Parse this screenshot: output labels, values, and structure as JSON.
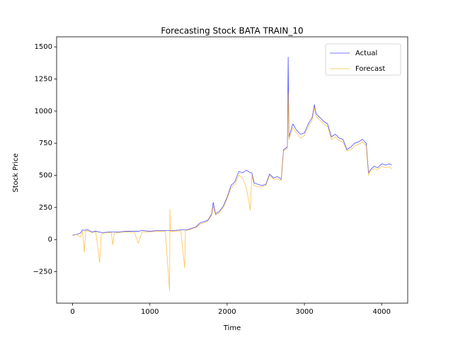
{
  "chart_data": {
    "type": "line",
    "title": "Forecasting Stock BATA TRAIN_10",
    "x_label": "Time",
    "y_label": "Stock Price",
    "x": [
      0,
      50,
      100,
      130,
      150,
      170,
      200,
      250,
      300,
      350,
      370,
      400,
      500,
      520,
      540,
      600,
      700,
      800,
      850,
      900,
      1000,
      1100,
      1200,
      1255,
      1260,
      1265,
      1300,
      1400,
      1450,
      1460,
      1500,
      1600,
      1650,
      1700,
      1750,
      1800,
      1820,
      1850,
      1900,
      1950,
      2000,
      2050,
      2100,
      2150,
      2200,
      2250,
      2300,
      2320,
      2350,
      2400,
      2450,
      2500,
      2550,
      2600,
      2650,
      2700,
      2730,
      2780,
      2790,
      2800,
      2850,
      2900,
      2950,
      3000,
      3050,
      3100,
      3130,
      3150,
      3200,
      3250,
      3300,
      3350,
      3400,
      3450,
      3500,
      3550,
      3600,
      3650,
      3700,
      3750,
      3800,
      3830,
      3850,
      3900,
      3950,
      4000,
      4050,
      4100,
      4130
    ],
    "series": [
      {
        "name": "Actual",
        "color": "#0000ff",
        "alpha": 0.7,
        "values": [
          35,
          40,
          50,
          75,
          72,
          75,
          75,
          60,
          65,
          58,
          55,
          55,
          60,
          60,
          60,
          60,
          65,
          65,
          65,
          70,
          65,
          70,
          70,
          70,
          70,
          70,
          70,
          75,
          75,
          75,
          80,
          100,
          130,
          140,
          150,
          200,
          290,
          200,
          220,
          260,
          330,
          420,
          450,
          530,
          520,
          540,
          520,
          520,
          440,
          430,
          420,
          430,
          510,
          480,
          490,
          470,
          700,
          720,
          1420,
          800,
          900,
          850,
          820,
          830,
          900,
          950,
          1050,
          980,
          950,
          920,
          900,
          800,
          820,
          790,
          780,
          700,
          720,
          750,
          760,
          780,
          750,
          520,
          540,
          570,
          560,
          590,
          580,
          590,
          580
        ]
      },
      {
        "name": "Forecast",
        "color": "#ffa500",
        "alpha": 0.7,
        "values": [
          30,
          40,
          20,
          60,
          -100,
          70,
          65,
          55,
          60,
          -180,
          40,
          50,
          55,
          -40,
          50,
          55,
          60,
          55,
          -30,
          60,
          60,
          65,
          65,
          -400,
          235,
          60,
          65,
          70,
          -220,
          70,
          75,
          95,
          120,
          130,
          145,
          190,
          260,
          190,
          210,
          250,
          320,
          400,
          430,
          500,
          480,
          400,
          230,
          500,
          420,
          410,
          410,
          420,
          500,
          470,
          470,
          460,
          690,
          710,
          1140,
          780,
          870,
          830,
          790,
          810,
          880,
          930,
          1030,
          960,
          930,
          900,
          880,
          780,
          800,
          770,
          760,
          690,
          700,
          730,
          740,
          760,
          730,
          500,
          530,
          550,
          545,
          570,
          560,
          565,
          550
        ]
      }
    ],
    "xlim": [
      -207,
      4337
    ],
    "xticks": [
      0,
      1000,
      2000,
      3000,
      4000
    ],
    "ylim": [
      -495,
      1545
    ],
    "yticks": [
      {
        "value": -250,
        "label": "−250"
      },
      0,
      250,
      500,
      750,
      1000,
      1250,
      1500
    ],
    "grid": false,
    "legend": "upper right"
  }
}
